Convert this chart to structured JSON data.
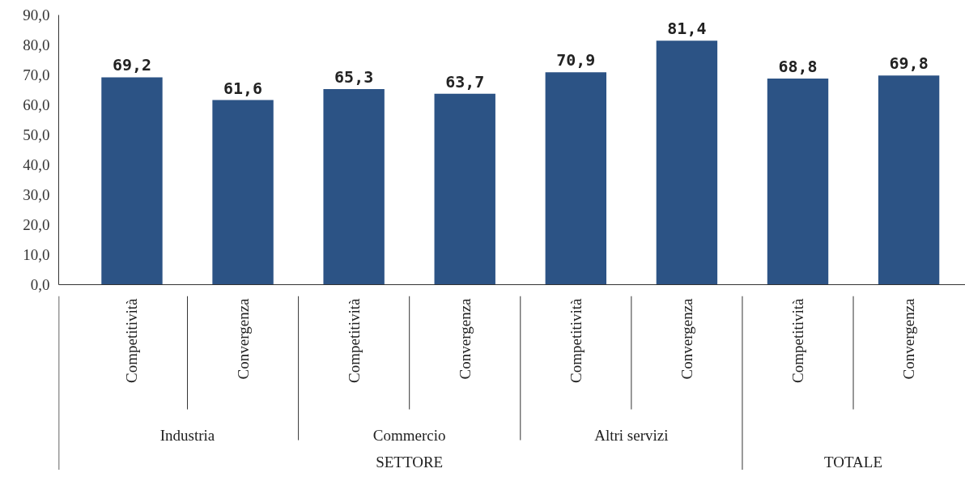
{
  "chart_data": {
    "type": "bar",
    "categories": [
      "Competitività",
      "Convergenza",
      "Competitività",
      "Convergenza",
      "Competitività",
      "Convergenza",
      "Competitività",
      "Convergenza"
    ],
    "values": [
      69.2,
      61.6,
      65.3,
      63.7,
      70.9,
      81.4,
      68.8,
      69.8
    ],
    "value_labels": [
      "69,2",
      "61,6",
      "65,3",
      "63,7",
      "70,9",
      "81,4",
      "68,8",
      "69,8"
    ],
    "color": "#2c5385",
    "ylim": [
      0,
      90
    ],
    "yticks": [
      {
        "value": 0,
        "label": "0,0"
      },
      {
        "value": 10,
        "label": "10,0"
      },
      {
        "value": 20,
        "label": "20,0"
      },
      {
        "value": 30,
        "label": "30,0"
      },
      {
        "value": 40,
        "label": "40,0"
      },
      {
        "value": 50,
        "label": "50,0"
      },
      {
        "value": 60,
        "label": "60,0"
      },
      {
        "value": 70,
        "label": "70,0"
      },
      {
        "value": 80,
        "label": "80,0"
      },
      {
        "value": 90,
        "label": "90,0"
      }
    ],
    "annotations": [
      "Industria",
      "Commercio",
      "Altri servizi",
      "SETTORE",
      "TOTALE"
    ],
    "grid": false
  }
}
